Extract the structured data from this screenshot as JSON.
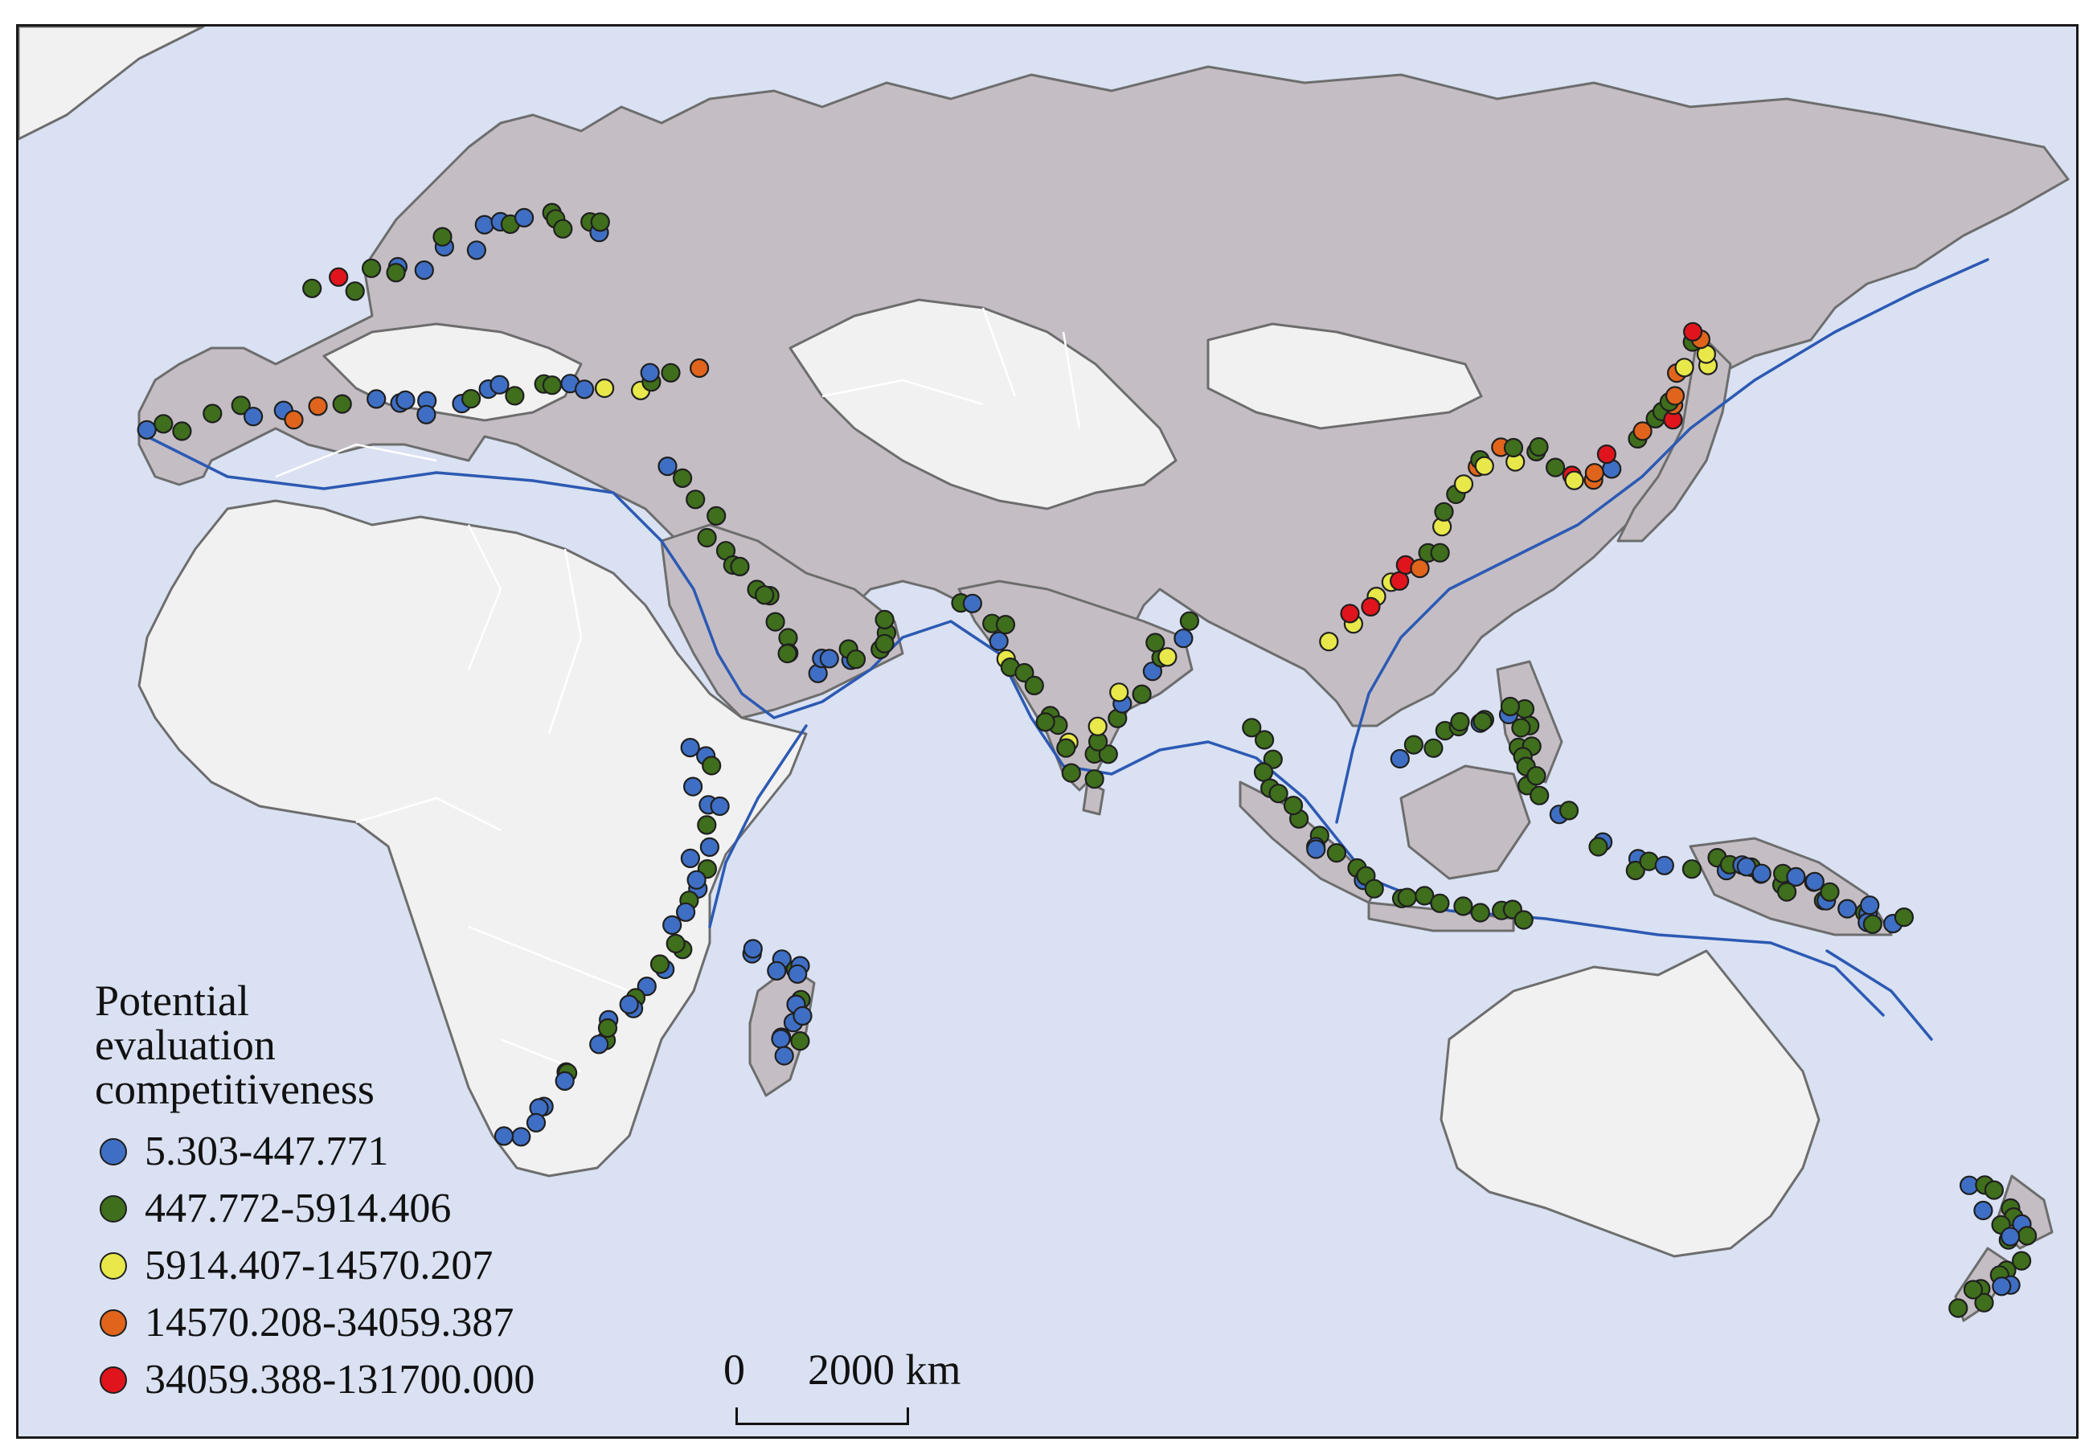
{
  "legend": {
    "title": "Potential\nevaluation\ncompetitiveness",
    "classes": [
      {
        "label": "5.303-447.771",
        "color": "#3f6fc4"
      },
      {
        "label": "447.772-5914.406",
        "color": "#3f6e1c"
      },
      {
        "label": "5914.407-14570.207",
        "color": "#e8e84a"
      },
      {
        "label": "14570.208-34059.387",
        "color": "#e0641c"
      },
      {
        "label": "34059.388-131700.000",
        "color": "#e0141c"
      }
    ]
  },
  "scale_bar": {
    "start_label": "0",
    "end_label": "2000 km"
  },
  "colors": {
    "ocean": "#d9e1f2",
    "highlight_land": "#c4bec4",
    "other_land": "#f1f1f1",
    "route": "#2c59b3"
  }
}
